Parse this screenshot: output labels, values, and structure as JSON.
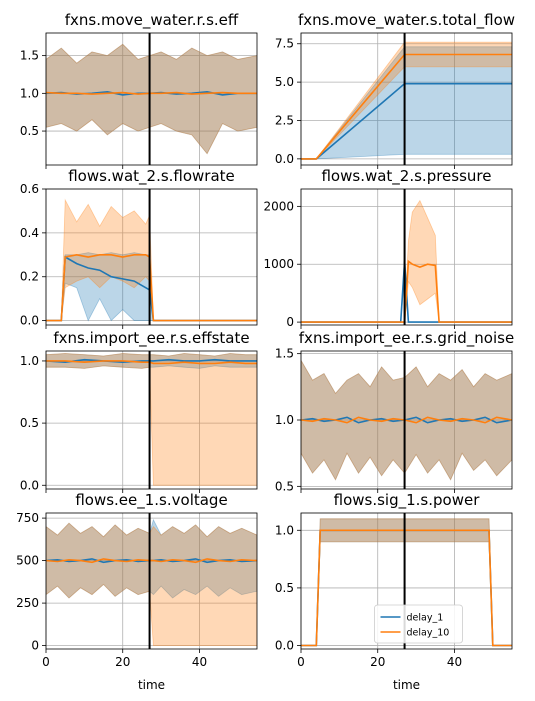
{
  "colors": {
    "delay_1": "#1f77b4",
    "delay_10": "#ff7f0e",
    "marker": "#000000",
    "grid": "#b0b0b0"
  },
  "legend": {
    "placement": "lower-center",
    "panel": 7,
    "entries": [
      "delay_1",
      "delay_10"
    ]
  },
  "chart_data": [
    {
      "type": "line",
      "title": "fxns.move_water.r.s.eff",
      "xlabel": "",
      "ylabel": "",
      "xlim": [
        0,
        55
      ],
      "ylim": [
        0.05,
        1.8
      ],
      "xticks": [
        0,
        20,
        40
      ],
      "show_xtick_labels": false,
      "yticks": [
        0.5,
        1.0,
        1.5
      ],
      "ytick_labels": [
        "0.5",
        "1.0",
        "1.5"
      ],
      "grid": true,
      "vline": 27,
      "x": [
        0,
        4,
        8,
        12,
        16,
        20,
        24,
        27,
        30,
        34,
        38,
        42,
        46,
        50,
        55
      ],
      "series": [
        {
          "name": "delay_1",
          "mean": [
            1.0,
            1.01,
            0.99,
            1.0,
            1.02,
            0.98,
            1.0,
            1.0,
            1.01,
            0.99,
            1.0,
            1.02,
            0.98,
            1.0,
            1.0
          ],
          "lower": [
            0.55,
            0.6,
            0.5,
            0.65,
            0.45,
            0.6,
            0.5,
            0.55,
            0.6,
            0.5,
            0.45,
            0.2,
            0.6,
            0.5,
            0.55
          ],
          "upper": [
            1.45,
            1.6,
            1.4,
            1.55,
            1.5,
            1.65,
            1.45,
            1.5,
            1.55,
            1.45,
            1.6,
            1.5,
            1.55,
            1.45,
            1.5
          ]
        },
        {
          "name": "delay_10",
          "mean": [
            1.01,
            1.0,
            1.0,
            0.99,
            1.0,
            1.01,
            0.99,
            1.0,
            1.0,
            1.01,
            0.99,
            1.0,
            1.01,
            1.0,
            1.0
          ],
          "lower": [
            0.55,
            0.6,
            0.5,
            0.65,
            0.45,
            0.6,
            0.5,
            0.55,
            0.6,
            0.5,
            0.45,
            0.2,
            0.6,
            0.5,
            0.55
          ],
          "upper": [
            1.45,
            1.6,
            1.4,
            1.55,
            1.5,
            1.65,
            1.45,
            1.5,
            1.55,
            1.45,
            1.6,
            1.5,
            1.55,
            1.45,
            1.5
          ]
        }
      ]
    },
    {
      "type": "line",
      "title": "fxns.move_water.s.total_flow",
      "xlabel": "",
      "ylabel": "",
      "xlim": [
        0,
        55
      ],
      "ylim": [
        -0.4,
        8.2
      ],
      "xticks": [
        0,
        20,
        40
      ],
      "show_xtick_labels": false,
      "yticks": [
        0.0,
        2.5,
        5.0,
        7.5
      ],
      "ytick_labels": [
        "0.0",
        "2.5",
        "5.0",
        "7.5"
      ],
      "grid": true,
      "vline": 27,
      "x": [
        0,
        4,
        27,
        55
      ],
      "series": [
        {
          "name": "delay_1",
          "mean": [
            0,
            0,
            4.9,
            4.9
          ],
          "lower": [
            0,
            0,
            0.3,
            0.3
          ],
          "upper": [
            0,
            0,
            7.3,
            7.3
          ]
        },
        {
          "name": "delay_10",
          "mean": [
            0,
            0,
            6.8,
            6.8
          ],
          "lower": [
            0,
            0,
            6.0,
            6.0
          ],
          "upper": [
            0,
            0,
            7.6,
            7.6
          ]
        }
      ]
    },
    {
      "type": "line",
      "title": "flows.wat_2.s.flowrate",
      "xlabel": "",
      "ylabel": "",
      "xlim": [
        0,
        55
      ],
      "ylim": [
        -0.02,
        0.6
      ],
      "xticks": [
        0,
        20,
        40
      ],
      "show_xtick_labels": false,
      "yticks": [
        0.0,
        0.2,
        0.4,
        0.6
      ],
      "ytick_labels": [
        "0.0",
        "0.2",
        "0.4",
        "0.6"
      ],
      "grid": true,
      "vline": 27,
      "x": [
        0,
        4,
        5,
        8,
        11,
        14,
        17,
        20,
        23,
        26,
        27,
        28,
        55
      ],
      "series": [
        {
          "name": "delay_1",
          "mean": [
            0,
            0,
            0.29,
            0.26,
            0.24,
            0.23,
            0.2,
            0.19,
            0.18,
            0.15,
            0.14,
            0,
            0
          ],
          "lower": [
            0,
            0,
            0.17,
            0.15,
            0.0,
            0.1,
            0.0,
            0.05,
            0.0,
            0.0,
            0.0,
            0,
            0
          ],
          "upper": [
            0,
            0,
            0.3,
            0.3,
            0.31,
            0.3,
            0.31,
            0.3,
            0.31,
            0.3,
            0.3,
            0,
            0
          ]
        },
        {
          "name": "delay_10",
          "mean": [
            0,
            0,
            0.29,
            0.3,
            0.29,
            0.3,
            0.3,
            0.29,
            0.3,
            0.3,
            0.29,
            0,
            0
          ],
          "lower": [
            0,
            0,
            0.15,
            0.18,
            0.2,
            0.15,
            0.2,
            0.18,
            0.15,
            0.2,
            0.18,
            0,
            0
          ],
          "upper": [
            0,
            0,
            0.55,
            0.45,
            0.53,
            0.43,
            0.52,
            0.47,
            0.5,
            0.44,
            0.48,
            0,
            0
          ]
        }
      ]
    },
    {
      "type": "line",
      "title": "flows.wat_2.s.pressure",
      "xlabel": "",
      "ylabel": "",
      "xlim": [
        0,
        55
      ],
      "ylim": [
        -50,
        2300
      ],
      "xticks": [
        0,
        20,
        40
      ],
      "show_xtick_labels": false,
      "yticks": [
        0,
        1000,
        2000
      ],
      "ytick_labels": [
        "0",
        "1000",
        "2000"
      ],
      "grid": true,
      "vline": 27,
      "x": [
        0,
        26,
        27,
        28,
        29,
        31,
        33,
        35,
        36,
        37,
        55
      ],
      "series": [
        {
          "name": "delay_1",
          "mean": [
            0,
            0,
            1050,
            0,
            0,
            0,
            0,
            0,
            0,
            0,
            0
          ],
          "lower": [
            0,
            0,
            800,
            0,
            0,
            0,
            0,
            0,
            0,
            0,
            0
          ],
          "upper": [
            0,
            0,
            1150,
            0,
            0,
            0,
            0,
            0,
            0,
            0,
            0
          ]
        },
        {
          "name": "delay_10",
          "mean": [
            0,
            0,
            0,
            1050,
            1000,
            950,
            1000,
            980,
            0,
            0,
            0
          ],
          "lower": [
            0,
            0,
            0,
            700,
            600,
            300,
            400,
            500,
            0,
            0,
            0
          ],
          "upper": [
            0,
            0,
            0,
            1400,
            1900,
            2100,
            1800,
            1500,
            0,
            0,
            0
          ]
        }
      ]
    },
    {
      "type": "line",
      "title": "fxns.import_ee.r.s.effstate",
      "xlabel": "",
      "ylabel": "",
      "xlim": [
        0,
        55
      ],
      "ylim": [
        -0.03,
        1.08
      ],
      "xticks": [
        0,
        20,
        40
      ],
      "show_xtick_labels": false,
      "yticks": [
        0.0,
        0.5,
        1.0
      ],
      "ytick_labels": [
        "0.0",
        "0.5",
        "1.0"
      ],
      "grid": true,
      "vline": 27,
      "x": [
        0,
        5,
        10,
        15,
        20,
        25,
        27,
        28,
        32,
        36,
        40,
        44,
        48,
        52,
        55
      ],
      "series": [
        {
          "name": "delay_1",
          "mean": [
            1.0,
            0.99,
            1.01,
            1.0,
            0.99,
            1.0,
            1.0,
            1.0,
            1.01,
            1.0,
            1.0,
            1.01,
            1.0,
            1.0,
            1.0
          ],
          "lower": [
            0.95,
            0.95,
            0.94,
            0.96,
            0.95,
            0.94,
            0.95,
            0.95,
            0.96,
            0.95,
            0.94,
            0.96,
            0.95,
            0.95,
            0.95
          ],
          "upper": [
            1.05,
            1.06,
            1.05,
            1.04,
            1.06,
            1.05,
            1.05,
            1.05,
            1.04,
            1.06,
            1.05,
            1.04,
            1.06,
            1.05,
            1.05
          ]
        },
        {
          "name": "delay_10",
          "mean": [
            1.0,
            1.0,
            0.99,
            1.0,
            1.0,
            0.99,
            0.99,
            0.98,
            0.98,
            0.99,
            0.98,
            0.98,
            0.99,
            0.98,
            0.98
          ],
          "lower": [
            0.95,
            0.95,
            0.94,
            0.96,
            0.95,
            0.94,
            0.95,
            0.0,
            0.0,
            0.0,
            0.0,
            0.0,
            0.0,
            0.0,
            0.0
          ],
          "upper": [
            1.05,
            1.06,
            1.05,
            1.04,
            1.06,
            1.05,
            1.05,
            1.05,
            1.04,
            1.06,
            1.05,
            1.04,
            1.06,
            1.05,
            1.05
          ]
        }
      ]
    },
    {
      "type": "line",
      "title": "fxns.import_ee.r.s.grid_noise",
      "xlabel": "",
      "ylabel": "",
      "xlim": [
        0,
        55
      ],
      "ylim": [
        0.48,
        1.52
      ],
      "xticks": [
        0,
        20,
        40
      ],
      "show_xtick_labels": false,
      "yticks": [
        0.5,
        1.0,
        1.5
      ],
      "ytick_labels": [
        "0.5",
        "1.0",
        "1.5"
      ],
      "grid": true,
      "vline": 27,
      "x": [
        0,
        3,
        6,
        9,
        12,
        15,
        18,
        21,
        24,
        27,
        30,
        33,
        36,
        39,
        42,
        45,
        48,
        51,
        55
      ],
      "series": [
        {
          "name": "delay_1",
          "mean": [
            1.0,
            1.01,
            0.99,
            1.0,
            1.02,
            0.98,
            1.0,
            1.01,
            0.99,
            1.0,
            1.02,
            0.98,
            1.0,
            1.01,
            0.99,
            1.0,
            1.02,
            0.98,
            1.0
          ],
          "lower": [
            0.75,
            0.6,
            0.7,
            0.55,
            0.75,
            0.6,
            0.72,
            0.58,
            0.7,
            0.6,
            0.74,
            0.6,
            0.7,
            0.55,
            0.75,
            0.62,
            0.7,
            0.58,
            0.7
          ],
          "upper": [
            1.45,
            1.3,
            1.35,
            1.2,
            1.3,
            1.35,
            1.25,
            1.4,
            1.3,
            1.32,
            1.4,
            1.25,
            1.35,
            1.3,
            1.38,
            1.25,
            1.35,
            1.3,
            1.35
          ]
        },
        {
          "name": "delay_10",
          "mean": [
            1.0,
            0.99,
            1.01,
            1.0,
            0.98,
            1.02,
            1.0,
            0.99,
            1.01,
            1.0,
            0.98,
            1.02,
            1.0,
            0.99,
            1.01,
            1.0,
            0.98,
            1.02,
            1.0
          ],
          "lower": [
            0.75,
            0.6,
            0.7,
            0.55,
            0.75,
            0.6,
            0.72,
            0.58,
            0.7,
            0.6,
            0.74,
            0.6,
            0.7,
            0.55,
            0.75,
            0.62,
            0.7,
            0.58,
            0.7
          ],
          "upper": [
            1.45,
            1.3,
            1.35,
            1.2,
            1.3,
            1.35,
            1.25,
            1.4,
            1.3,
            1.32,
            1.4,
            1.25,
            1.35,
            1.3,
            1.38,
            1.25,
            1.35,
            1.3,
            1.35
          ]
        }
      ]
    },
    {
      "type": "line",
      "title": "flows.ee_1.s.voltage",
      "xlabel": "time",
      "ylabel": "",
      "xlim": [
        0,
        55
      ],
      "ylim": [
        -20,
        780
      ],
      "xticks": [
        0,
        20,
        40
      ],
      "show_xtick_labels": true,
      "yticks": [
        0,
        250,
        500,
        750
      ],
      "ytick_labels": [
        "0",
        "250",
        "500",
        "750"
      ],
      "grid": true,
      "vline": 27,
      "x": [
        0,
        3,
        6,
        9,
        12,
        15,
        18,
        21,
        24,
        27,
        28,
        30,
        33,
        36,
        39,
        42,
        45,
        48,
        51,
        55
      ],
      "series": [
        {
          "name": "delay_1",
          "mean": [
            500,
            505,
            495,
            500,
            510,
            490,
            500,
            505,
            495,
            500,
            500,
            505,
            495,
            500,
            510,
            490,
            500,
            505,
            495,
            500
          ],
          "lower": [
            300,
            350,
            280,
            340,
            300,
            360,
            290,
            340,
            300,
            320,
            300,
            350,
            280,
            330,
            300,
            350,
            290,
            340,
            300,
            320
          ],
          "upper": [
            700,
            650,
            720,
            660,
            700,
            640,
            710,
            650,
            690,
            660,
            740,
            650,
            700,
            660,
            710,
            640,
            700,
            660,
            690,
            650
          ]
        },
        {
          "name": "delay_10",
          "mean": [
            500,
            495,
            505,
            500,
            490,
            510,
            500,
            495,
            505,
            500,
            500,
            495,
            505,
            500,
            490,
            510,
            500,
            495,
            505,
            500
          ],
          "lower": [
            300,
            350,
            280,
            340,
            300,
            360,
            290,
            340,
            300,
            320,
            0,
            0,
            0,
            0,
            0,
            0,
            0,
            0,
            0,
            0
          ],
          "upper": [
            700,
            650,
            720,
            660,
            700,
            640,
            710,
            650,
            690,
            660,
            700,
            650,
            700,
            660,
            710,
            640,
            700,
            660,
            690,
            650
          ]
        }
      ]
    },
    {
      "type": "line",
      "title": "flows.sig_1.s.power",
      "xlabel": "time",
      "ylabel": "",
      "xlim": [
        0,
        55
      ],
      "ylim": [
        -0.03,
        1.15
      ],
      "xticks": [
        0,
        20,
        40
      ],
      "show_xtick_labels": true,
      "yticks": [
        0.0,
        0.5,
        1.0
      ],
      "ytick_labels": [
        "0.0",
        "0.5",
        "1.0"
      ],
      "grid": true,
      "vline": 27,
      "x": [
        0,
        4,
        5,
        49,
        50,
        55
      ],
      "series": [
        {
          "name": "delay_1",
          "mean": [
            0,
            0,
            1.0,
            1.0,
            0,
            0
          ],
          "lower": [
            0,
            0,
            0.9,
            0.9,
            0,
            0
          ],
          "upper": [
            0,
            0,
            1.1,
            1.1,
            0,
            0
          ]
        },
        {
          "name": "delay_10",
          "mean": [
            0,
            0,
            1.0,
            1.0,
            0,
            0
          ],
          "lower": [
            0,
            0,
            0.9,
            0.9,
            0,
            0
          ],
          "upper": [
            0,
            0,
            1.1,
            1.1,
            0,
            0
          ]
        }
      ]
    }
  ]
}
